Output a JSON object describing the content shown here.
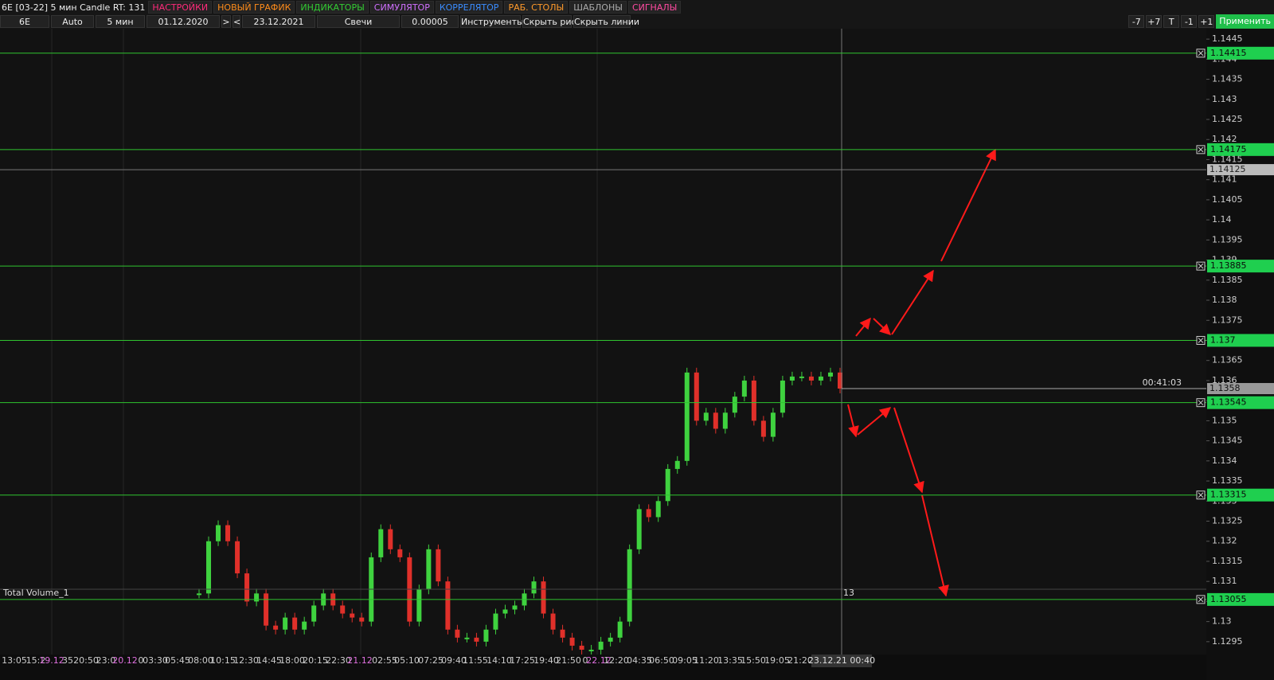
{
  "toolbar": {
    "title": "6E [03-22] 5 мин Candle RT: 131",
    "menu": [
      {
        "label": "НАСТРОЙКИ",
        "color": "#ff2a7a"
      },
      {
        "label": "НОВЫЙ ГРАФИК",
        "color": "#ff8c1a"
      },
      {
        "label": "ИНДИКАТОРЫ",
        "color": "#33cc33"
      },
      {
        "label": "СИМУЛЯТОР",
        "color": "#d070ff"
      },
      {
        "label": "КОРРЕЛЯТОР",
        "color": "#3a8cff"
      },
      {
        "label": "РАБ. СТОЛЫ",
        "color": "#ff9a2a"
      },
      {
        "label": "ШАБЛОНЫ",
        "color": "#aaaaaa"
      },
      {
        "label": "СИГНАЛЫ",
        "color": "#ff4aa0"
      }
    ],
    "controls": [
      "6E",
      "Auto",
      "5 мин",
      "01.12.2020",
      ">",
      "<",
      "23.12.2021",
      "Свечи",
      "0.00005",
      "Инструменты",
      "Скрыть рис.",
      "Скрыть линии"
    ],
    "right_buttons": [
      "-7",
      "+7",
      "T",
      "-1",
      "+1"
    ],
    "apply": "Применить"
  },
  "chart": {
    "ylim": [
      1.12918,
      1.14476
    ],
    "yticks": [
      1.1445,
      1.144,
      1.1435,
      1.143,
      1.1425,
      1.142,
      1.1415,
      1.141,
      1.1405,
      1.14,
      1.1395,
      1.139,
      1.1385,
      1.138,
      1.1375,
      1.137,
      1.1365,
      1.136,
      1.1355,
      1.135,
      1.1345,
      1.134,
      1.1335,
      1.133,
      1.1325,
      1.132,
      1.1315,
      1.131,
      1.1305,
      1.13,
      1.1295
    ],
    "levels": [
      1.14415,
      1.14175,
      1.13885,
      1.137,
      1.13545,
      1.13315,
      1.13055
    ],
    "crosshair_price": 1.14125,
    "last_price": 1.1358,
    "timer": "00:41:03",
    "closes": [
      1.1307,
      1.132,
      1.1324,
      1.132,
      1.1312,
      1.1305,
      1.1307,
      1.1299,
      1.1298,
      1.1301,
      1.1298,
      1.13,
      1.1304,
      1.1307,
      1.1304,
      1.1302,
      1.1301,
      1.13,
      1.1316,
      1.1323,
      1.1318,
      1.1316,
      1.13,
      1.1308,
      1.1318,
      1.131,
      1.1298,
      1.1296,
      1.1296,
      1.1295,
      1.1298,
      1.1302,
      1.1303,
      1.1304,
      1.1307,
      1.131,
      1.1302,
      1.1298,
      1.1296,
      1.1294,
      1.1293,
      1.1293,
      1.1295,
      1.1296,
      1.13,
      1.1318,
      1.1328,
      1.1326,
      1.133,
      1.1338,
      1.134,
      1.1362,
      1.135,
      1.1352,
      1.1348,
      1.1352,
      1.1356,
      1.136,
      1.135,
      1.1346,
      1.1352,
      1.136,
      1.1361,
      1.1361,
      1.136,
      1.1361,
      1.1362,
      1.1358
    ],
    "time_labels": [
      "13:05",
      "15:2",
      "19.12",
      "35",
      "20:50",
      "23:0",
      "20.12",
      "0",
      "03:30",
      "05:45",
      "08:00",
      "10:15",
      "12:30",
      "14:45",
      "18:00",
      "20:15",
      "22:30",
      "21.12",
      "02:55",
      "05:10",
      "07:25",
      "09:40",
      "11:55",
      "14:10",
      "17:25",
      "19:40",
      "21:50",
      "0",
      "22.12",
      "12:20",
      "04:35",
      "06:50",
      "09:05",
      "11:20",
      "13:35",
      "15:50",
      "19:05",
      "21:20"
    ],
    "crosshair_time": "23.12.21 00:40",
    "volume_label": "Total Volume_1",
    "volume_value": 13
  }
}
